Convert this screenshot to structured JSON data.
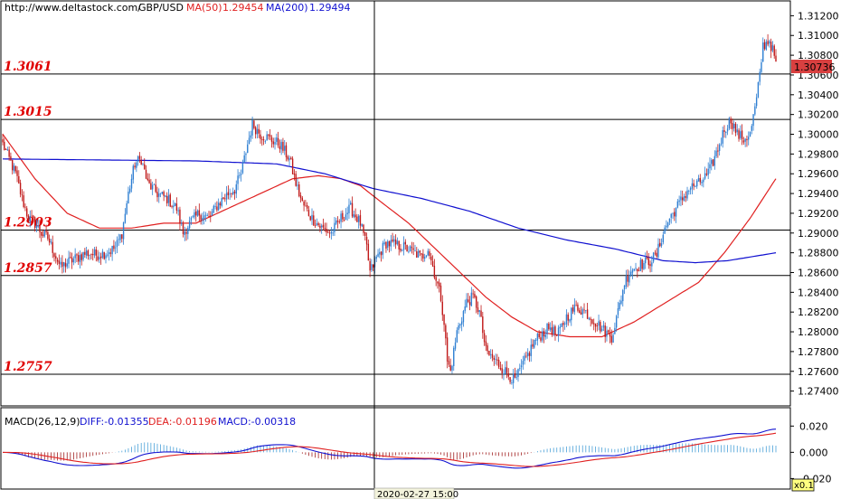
{
  "header": {
    "source": "http://www.deltastock.com/",
    "symbol": "GBP/USD",
    "ma50_label": "MA(50)",
    "ma50_value": "1.29454",
    "ma200_label": "MA(200)",
    "ma200_value": "1.29494"
  },
  "macd_header": {
    "label": "MACD(26,12,9)",
    "diff": "DIFF:-0.01355",
    "dea": "DEA:-0.01196",
    "macd": "MACD:-0.00318"
  },
  "cursor_date": "2020-02-27 15:00",
  "zoom": "x0.1",
  "current_price": "1.30736",
  "colors": {
    "up": "#2f7fd2",
    "down": "#c01818",
    "ma50": "#e02020",
    "ma200": "#1010d0",
    "level_text": "#e00000",
    "price_tag": "#d84040"
  },
  "chart_data": {
    "type": "candlestick",
    "symbol": "GBP/USD",
    "price_ylim": [
      1.2725,
      1.3135
    ],
    "price_ticks": [
      "1.31200",
      "1.31000",
      "1.30800",
      "1.30600",
      "1.30400",
      "1.30200",
      "1.30000",
      "1.29800",
      "1.29600",
      "1.29400",
      "1.29200",
      "1.29000",
      "1.28800",
      "1.28600",
      "1.28400",
      "1.28200",
      "1.28000",
      "1.27800",
      "1.27600",
      "1.27400"
    ],
    "levels": [
      {
        "label": "1.3061",
        "value": 1.3061
      },
      {
        "label": "1.3015",
        "value": 1.3015
      },
      {
        "label": "1.2903",
        "value": 1.2903
      },
      {
        "label": "1.2857",
        "value": 1.2857
      },
      {
        "label": "1.2757",
        "value": 1.2757
      }
    ],
    "last_price": 1.30736,
    "close_anchors": [
      [
        0,
        1.299
      ],
      [
        4,
        1.2975
      ],
      [
        8,
        1.296
      ],
      [
        12,
        1.2935
      ],
      [
        16,
        1.2915
      ],
      [
        20,
        1.291
      ],
      [
        24,
        1.29
      ],
      [
        28,
        1.2895
      ],
      [
        32,
        1.288
      ],
      [
        36,
        1.2865
      ],
      [
        40,
        1.287
      ],
      [
        46,
        1.2875
      ],
      [
        52,
        1.288
      ],
      [
        58,
        1.2878
      ],
      [
        64,
        1.288
      ],
      [
        70,
        1.2885
      ],
      [
        74,
        1.29
      ],
      [
        78,
        1.294
      ],
      [
        82,
        1.297
      ],
      [
        86,
        1.2975
      ],
      [
        90,
        1.295
      ],
      [
        96,
        1.294
      ],
      [
        102,
        1.2935
      ],
      [
        108,
        1.2925
      ],
      [
        112,
        1.29
      ],
      [
        116,
        1.291
      ],
      [
        122,
        1.292
      ],
      [
        128,
        1.2915
      ],
      [
        134,
        1.293
      ],
      [
        140,
        1.294
      ],
      [
        144,
        1.2945
      ],
      [
        148,
        1.296
      ],
      [
        152,
        1.299
      ],
      [
        155,
        1.301
      ],
      [
        160,
        1.3
      ],
      [
        166,
        1.2995
      ],
      [
        172,
        1.299
      ],
      [
        178,
        1.2975
      ],
      [
        182,
        1.295
      ],
      [
        186,
        1.293
      ],
      [
        192,
        1.2915
      ],
      [
        198,
        1.2905
      ],
      [
        204,
        1.29
      ],
      [
        210,
        1.2915
      ],
      [
        216,
        1.2925
      ],
      [
        222,
        1.291
      ],
      [
        226,
        1.2885
      ],
      [
        228,
        1.286
      ],
      [
        232,
        1.2875
      ],
      [
        238,
        1.289
      ],
      [
        244,
        1.2888
      ],
      [
        250,
        1.2885
      ],
      [
        256,
        1.288
      ],
      [
        260,
        1.2875
      ],
      [
        264,
        1.2885
      ],
      [
        268,
        1.286
      ],
      [
        272,
        1.2835
      ],
      [
        274,
        1.281
      ],
      [
        276,
        1.277
      ],
      [
        278,
        1.276
      ],
      [
        282,
        1.28
      ],
      [
        288,
        1.283
      ],
      [
        292,
        1.2835
      ],
      [
        296,
        1.282
      ],
      [
        300,
        1.278
      ],
      [
        306,
        1.277
      ],
      [
        312,
        1.276
      ],
      [
        318,
        1.275
      ],
      [
        324,
        1.277
      ],
      [
        330,
        1.279
      ],
      [
        336,
        1.28
      ],
      [
        340,
        1.2805
      ],
      [
        344,
        1.2795
      ],
      [
        350,
        1.2815
      ],
      [
        356,
        1.2825
      ],
      [
        362,
        1.282
      ],
      [
        368,
        1.281
      ],
      [
        374,
        1.28
      ],
      [
        378,
        1.2795
      ],
      [
        382,
        1.282
      ],
      [
        386,
        1.285
      ],
      [
        390,
        1.2863
      ],
      [
        396,
        1.2868
      ],
      [
        402,
        1.2872
      ],
      [
        406,
        1.2878
      ],
      [
        410,
        1.29
      ],
      [
        414,
        1.2915
      ],
      [
        420,
        1.293
      ],
      [
        426,
        1.2945
      ],
      [
        432,
        1.295
      ],
      [
        438,
        1.296
      ],
      [
        444,
        1.2985
      ],
      [
        448,
        1.3005
      ],
      [
        452,
        1.3015
      ],
      [
        456,
        1.3
      ],
      [
        460,
        1.2995
      ],
      [
        464,
        1.3
      ],
      [
        468,
        1.3035
      ],
      [
        470,
        1.306
      ],
      [
        472,
        1.309
      ],
      [
        476,
        1.3095
      ],
      [
        480,
        1.3074
      ]
    ],
    "ma50_series": [
      [
        0,
        1.3
      ],
      [
        20,
        1.2955
      ],
      [
        40,
        1.292
      ],
      [
        60,
        1.2905
      ],
      [
        80,
        1.2905
      ],
      [
        100,
        1.291
      ],
      [
        120,
        1.291
      ],
      [
        140,
        1.2925
      ],
      [
        160,
        1.294
      ],
      [
        180,
        1.2955
      ],
      [
        196,
        1.2958
      ],
      [
        210,
        1.2955
      ],
      [
        222,
        1.2948
      ],
      [
        236,
        1.293
      ],
      [
        252,
        1.291
      ],
      [
        268,
        1.2885
      ],
      [
        284,
        1.286
      ],
      [
        300,
        1.2835
      ],
      [
        316,
        1.2815
      ],
      [
        332,
        1.28
      ],
      [
        352,
        1.2795
      ],
      [
        372,
        1.2795
      ],
      [
        392,
        1.281
      ],
      [
        412,
        1.283
      ],
      [
        432,
        1.285
      ],
      [
        448,
        1.288
      ],
      [
        464,
        1.2915
      ],
      [
        480,
        1.2955
      ]
    ],
    "ma200_series": [
      [
        0,
        1.2975
      ],
      [
        60,
        1.2974
      ],
      [
        120,
        1.2973
      ],
      [
        170,
        1.297
      ],
      [
        200,
        1.296
      ],
      [
        230,
        1.2945
      ],
      [
        260,
        1.2935
      ],
      [
        290,
        1.2922
      ],
      [
        320,
        1.2905
      ],
      [
        350,
        1.2893
      ],
      [
        380,
        1.2884
      ],
      [
        410,
        1.2872
      ],
      [
        430,
        1.287
      ],
      [
        450,
        1.2872
      ],
      [
        480,
        1.288
      ]
    ],
    "macd_ylim": [
      -0.028,
      0.034
    ],
    "macd_ticks": [
      "0.020",
      "0.000",
      "-0.020"
    ],
    "macd_last": {
      "diff": -0.01355,
      "dea": -0.01196,
      "macd": -0.00318
    }
  }
}
